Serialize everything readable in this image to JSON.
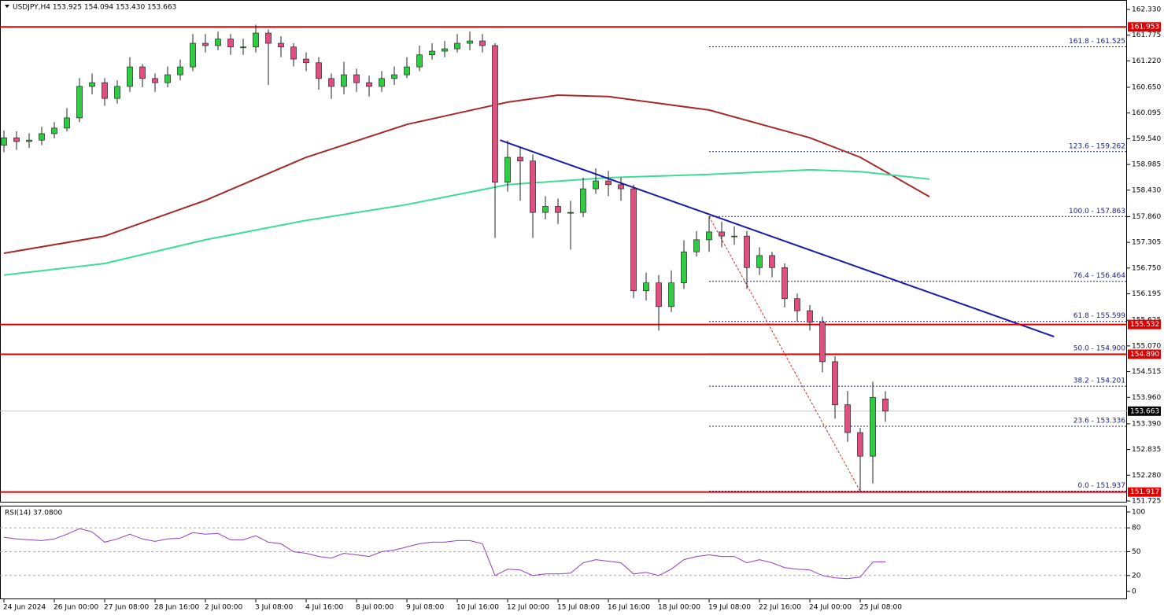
{
  "chart_data": {
    "type": "candlestick",
    "title": "USDJPY,H4  153.925 154.094 153.430 153.663",
    "ylim": [
      151.725,
      162.33
    ],
    "yticks": [
      {
        "value": 162.33,
        "label": "162.330"
      },
      161.775,
      {
        "value": 161.22,
        "label": "161.220"
      },
      {
        "value": 160.65,
        "label": "160.650"
      },
      160.095,
      {
        "value": 159.54,
        "label": "159.540"
      },
      158.985,
      {
        "value": 158.43,
        "label": "158.430"
      },
      {
        "value": 157.86,
        "label": "157.860"
      },
      157.305,
      {
        "value": 156.75,
        "label": "156.750"
      },
      156.195,
      155.625,
      {
        "value": 155.07,
        "label": "155.070"
      },
      154.515,
      {
        "value": 153.96,
        "label": "153.960"
      },
      {
        "value": 153.39,
        "label": "153.390"
      },
      152.835,
      {
        "value": 152.28,
        "label": "152.280"
      },
      151.725
    ],
    "bull_color": "#2ecc40",
    "bear_color": "#e0507f",
    "candles": {
      "open": [
        159.4,
        159.56,
        159.48,
        159.51,
        159.65,
        159.77,
        159.99,
        160.67,
        160.75,
        160.41,
        160.67,
        161.09,
        160.84,
        160.75,
        160.92,
        161.09,
        161.6,
        161.55,
        161.69,
        161.52,
        161.52,
        161.82,
        161.6,
        161.52,
        161.26,
        161.18,
        160.84,
        160.67,
        160.92,
        160.75,
        160.67,
        160.84,
        160.92,
        161.09,
        161.35,
        161.43,
        161.48,
        161.6,
        161.65,
        161.55,
        158.6,
        159.14,
        159.06,
        157.95,
        158.08,
        157.95,
        157.95,
        158.46,
        158.63,
        158.55,
        158.46,
        156.26,
        156.43,
        155.92,
        156.43,
        157.1,
        157.36,
        157.53,
        157.44,
        157.44,
        156.76,
        157.02,
        156.76,
        156.09,
        155.83,
        155.58,
        154.73,
        153.8,
        153.2,
        152.69,
        153.925
      ],
      "high": [
        159.72,
        159.7,
        159.66,
        159.8,
        159.9,
        160.2,
        160.85,
        160.95,
        160.85,
        160.8,
        161.3,
        161.15,
        160.95,
        161.1,
        161.25,
        161.8,
        161.8,
        161.85,
        161.8,
        161.7,
        162.0,
        161.9,
        161.75,
        161.6,
        161.4,
        161.3,
        160.95,
        161.2,
        161.05,
        160.9,
        161.0,
        161.1,
        161.3,
        161.55,
        161.6,
        161.65,
        161.8,
        161.85,
        161.8,
        161.6,
        159.5,
        159.35,
        159.2,
        158.3,
        158.25,
        158.2,
        158.7,
        158.9,
        158.85,
        158.7,
        158.55,
        156.65,
        156.6,
        156.7,
        157.35,
        157.55,
        157.86,
        157.75,
        157.65,
        157.55,
        157.2,
        157.1,
        156.85,
        156.2,
        155.95,
        155.7,
        154.85,
        154.1,
        153.3,
        154.3,
        154.094
      ],
      "low": [
        159.25,
        159.3,
        159.34,
        159.4,
        159.55,
        159.7,
        159.9,
        160.5,
        160.25,
        160.3,
        160.55,
        160.65,
        160.55,
        160.65,
        160.8,
        161.0,
        161.4,
        161.45,
        161.35,
        161.35,
        161.4,
        160.7,
        161.3,
        161.1,
        161.0,
        160.6,
        160.4,
        160.5,
        160.55,
        160.45,
        160.55,
        160.7,
        160.85,
        161.0,
        161.25,
        161.3,
        161.4,
        161.45,
        161.4,
        157.4,
        158.4,
        158.2,
        157.4,
        157.8,
        157.7,
        157.15,
        157.85,
        158.35,
        158.3,
        158.2,
        156.1,
        156.05,
        155.4,
        155.8,
        156.3,
        157.0,
        157.1,
        157.2,
        157.25,
        156.3,
        156.6,
        156.55,
        155.9,
        155.6,
        155.4,
        154.5,
        153.5,
        153.0,
        151.94,
        152.1,
        153.43
      ],
      "close": [
        159.56,
        159.48,
        159.51,
        159.65,
        159.77,
        159.99,
        160.67,
        160.75,
        160.41,
        160.67,
        161.09,
        160.84,
        160.75,
        160.92,
        161.09,
        161.6,
        161.55,
        161.69,
        161.52,
        161.52,
        161.82,
        161.6,
        161.52,
        161.26,
        161.18,
        160.84,
        160.67,
        160.92,
        160.75,
        160.67,
        160.84,
        160.92,
        161.09,
        161.35,
        161.43,
        161.48,
        161.6,
        161.65,
        161.55,
        158.6,
        159.14,
        159.06,
        157.95,
        158.08,
        157.95,
        157.95,
        158.46,
        158.63,
        158.55,
        158.46,
        156.26,
        156.43,
        155.92,
        156.43,
        157.1,
        157.36,
        157.53,
        157.44,
        157.44,
        156.76,
        157.02,
        156.76,
        156.09,
        155.83,
        155.58,
        154.73,
        153.8,
        153.2,
        152.69,
        153.96,
        153.663
      ]
    },
    "moving_averages": [
      {
        "color": "#a52a2a",
        "x": [
          0,
          8,
          16,
          24,
          32,
          40,
          44,
          48,
          56,
          64,
          68,
          73.5
        ],
        "values": [
          157.07,
          157.44,
          158.21,
          159.14,
          159.85,
          160.33,
          160.48,
          160.45,
          160.16,
          159.56,
          159.14,
          158.29
        ]
      },
      {
        "color": "#3ddc97",
        "x": [
          0,
          8,
          16,
          24,
          32,
          40,
          48,
          56,
          64,
          68,
          73.5
        ],
        "values": [
          156.6,
          156.85,
          157.36,
          157.78,
          158.12,
          158.55,
          158.7,
          158.77,
          158.87,
          158.83,
          158.67
        ]
      }
    ],
    "trendline": {
      "color": "#1a1aa8",
      "x": [
        39.4,
        83.4
      ],
      "values": [
        159.51,
        155.27
      ]
    },
    "fib_line": {
      "color": "#c0392b",
      "x": [
        56,
        68
      ],
      "values": [
        157.863,
        151.937
      ]
    },
    "fib_color": "#1a237e",
    "fib_levels": [
      {
        "label": "161.8 - 161.525",
        "value": 161.525
      },
      {
        "label": "123.6 - 159.262",
        "value": 159.262
      },
      {
        "label": "100.0 - 157.863",
        "value": 157.863
      },
      {
        "label": "76.4 - 156.464",
        "value": 156.464
      },
      {
        "label": "61.8 - 155.599",
        "value": 155.599
      },
      {
        "label": "50.0 - 154.900",
        "value": 154.9
      },
      {
        "label": "38.2 - 154.201",
        "value": 154.201
      },
      {
        "label": "23.6 - 153.336",
        "value": 153.336
      },
      {
        "label": "0.0 - 151.937",
        "value": 151.937
      }
    ],
    "levels": [
      {
        "label": "161.953",
        "value": 161.953,
        "color": "#e00000"
      },
      {
        "label": "155.532",
        "value": 155.532,
        "color": "#e00000"
      },
      {
        "label": "154.890",
        "value": 154.89,
        "color": "#e00000"
      },
      {
        "label": "151.917",
        "value": 151.917,
        "color": "#e00000"
      }
    ],
    "price_line": {
      "label": "153.663",
      "value": 153.663,
      "color": "#c8c8c8"
    },
    "rsi": {
      "label": "RSI(14) 37.0800",
      "color": "#8e3fbf",
      "ylim": [
        0,
        100
      ],
      "yticks": [
        100,
        80,
        50,
        20,
        0
      ],
      "dashed_levels": [
        80,
        50,
        20
      ],
      "values": [
        68,
        66,
        65,
        64,
        66,
        72,
        79,
        75,
        62,
        66,
        72,
        66,
        63,
        66,
        67,
        74,
        72,
        73,
        65,
        65,
        70,
        62,
        60,
        50,
        48,
        44,
        42,
        48,
        46,
        44,
        50,
        52,
        56,
        60,
        62,
        62,
        64,
        64,
        60,
        20,
        28,
        27,
        20,
        22,
        22,
        23,
        36,
        40,
        38,
        36,
        22,
        24,
        20,
        28,
        40,
        44,
        46,
        44,
        44,
        36,
        40,
        36,
        30,
        28,
        27,
        20,
        17,
        16,
        18,
        37,
        37.08
      ]
    },
    "time_labels": [
      {
        "label": "24 Jun 2024",
        "x": 0
      },
      {
        "label": "26 Jun 00:00",
        "x": 4
      },
      {
        "label": "27 Jun 08:00",
        "x": 8
      },
      {
        "label": "28 Jun 16:00",
        "x": 12
      },
      {
        "label": "2 Jul 00:00",
        "x": 16
      },
      {
        "label": "3 Jul 08:00",
        "x": 20
      },
      {
        "label": "4 Jul 16:00",
        "x": 24
      },
      {
        "label": "8 Jul 00:00",
        "x": 28
      },
      {
        "label": "9 Jul 08:00",
        "x": 32
      },
      {
        "label": "10 Jul 16:00",
        "x": 36
      },
      {
        "label": "12 Jul 00:00",
        "x": 40
      },
      {
        "label": "15 Jul 08:00",
        "x": 44
      },
      {
        "label": "16 Jul 16:00",
        "x": 48
      },
      {
        "label": "18 Jul 00:00",
        "x": 52
      },
      {
        "label": "19 Jul 08:00",
        "x": 56
      },
      {
        "label": "22 Jul 16:00",
        "x": 60
      },
      {
        "label": "24 Jul 00:00",
        "x": 64
      },
      {
        "label": "25 Jul 08:00",
        "x": 68
      }
    ]
  }
}
